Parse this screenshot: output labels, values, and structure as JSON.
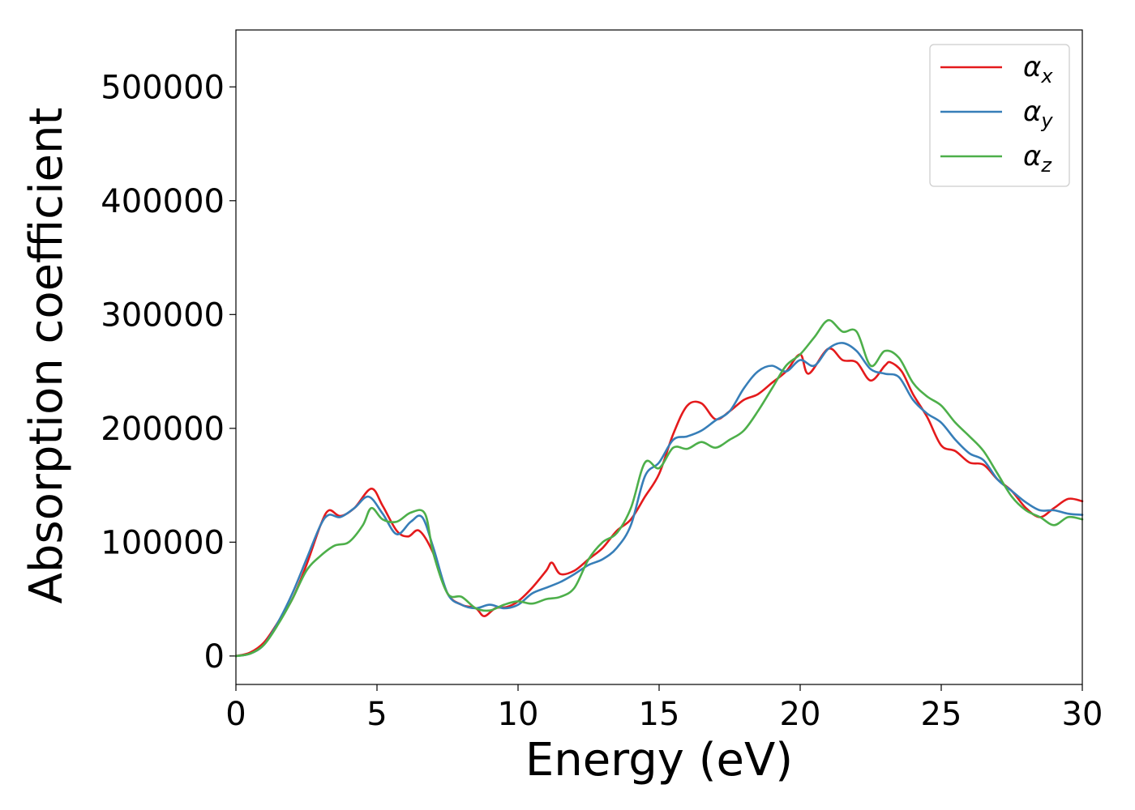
{
  "chart_data": {
    "type": "line",
    "title": "",
    "xlabel": "Energy (eV)",
    "ylabel": "Absorption coefficient",
    "xlim": [
      0,
      30
    ],
    "ylim": [
      -25000,
      550000
    ],
    "xticks": [
      0,
      5,
      10,
      15,
      20,
      25,
      30
    ],
    "xtick_labels": [
      "0",
      "5",
      "10",
      "15",
      "20",
      "25",
      "30"
    ],
    "yticks": [
      0,
      100000,
      200000,
      300000,
      400000,
      500000
    ],
    "ytick_labels": [
      "0",
      "100000",
      "200000",
      "300000",
      "400000",
      "500000"
    ],
    "grid": false,
    "legend_position": "top-right",
    "series": [
      {
        "name": "αx",
        "legend_base": "α",
        "legend_sub": "x",
        "color": "#e41a1c",
        "x": [
          0,
          0.5,
          1,
          1.5,
          2,
          2.5,
          3,
          3.3,
          3.7,
          4.2,
          4.8,
          5.2,
          5.7,
          6.1,
          6.5,
          7,
          7.5,
          8,
          8.5,
          8.8,
          9.2,
          9.6,
          10,
          10.5,
          11,
          11.2,
          11.5,
          12,
          12.5,
          13,
          13.5,
          14,
          14.5,
          15,
          15.5,
          16,
          16.5,
          17,
          17.5,
          18,
          18.5,
          19,
          19.5,
          20,
          20.3,
          21,
          21.5,
          22,
          22.5,
          23,
          23.2,
          23.6,
          24,
          24.5,
          25,
          25.5,
          26,
          26.5,
          27,
          27.5,
          28,
          28.5,
          29,
          29.5,
          30
        ],
        "y": [
          0,
          3000,
          12000,
          30000,
          50000,
          80000,
          115000,
          128000,
          123000,
          130000,
          147000,
          132000,
          110000,
          105000,
          110000,
          90000,
          55000,
          45000,
          42000,
          35000,
          42000,
          43000,
          48000,
          60000,
          75000,
          82000,
          72000,
          75000,
          85000,
          95000,
          110000,
          120000,
          140000,
          160000,
          195000,
          220000,
          222000,
          208000,
          215000,
          225000,
          230000,
          240000,
          250000,
          265000,
          248000,
          270000,
          260000,
          258000,
          242000,
          255000,
          258000,
          250000,
          230000,
          210000,
          185000,
          180000,
          170000,
          168000,
          155000,
          145000,
          130000,
          122000,
          130000,
          138000,
          136000
        ]
      },
      {
        "name": "αy",
        "legend_base": "α",
        "legend_sub": "y",
        "color": "#377eb8",
        "x": [
          0,
          0.5,
          1,
          1.5,
          2,
          2.5,
          3,
          3.3,
          3.7,
          4.2,
          4.7,
          5.2,
          5.7,
          6.2,
          6.6,
          7,
          7.5,
          8,
          8.5,
          9,
          9.5,
          10,
          10.5,
          11,
          11.5,
          12,
          12.5,
          13,
          13.5,
          14,
          14.5,
          15,
          15.5,
          16,
          16.5,
          17,
          17.5,
          18,
          18.5,
          19,
          19.5,
          20,
          20.5,
          21,
          21.5,
          22,
          22.5,
          23,
          23.5,
          24,
          24.5,
          25,
          25.5,
          26,
          26.5,
          27,
          27.5,
          28,
          28.5,
          29,
          29.5,
          30
        ],
        "y": [
          0,
          2000,
          10000,
          30000,
          55000,
          85000,
          115000,
          124000,
          122000,
          130000,
          140000,
          125000,
          107000,
          118000,
          122000,
          95000,
          55000,
          45000,
          42000,
          45000,
          42000,
          45000,
          55000,
          60000,
          65000,
          72000,
          80000,
          85000,
          95000,
          115000,
          158000,
          170000,
          190000,
          193000,
          198000,
          207000,
          215000,
          235000,
          250000,
          255000,
          250000,
          260000,
          255000,
          270000,
          275000,
          268000,
          252000,
          248000,
          245000,
          225000,
          213000,
          205000,
          190000,
          178000,
          172000,
          155000,
          145000,
          135000,
          128000,
          128000,
          125000,
          124000
        ]
      },
      {
        "name": "αz",
        "legend_base": "α",
        "legend_sub": "z",
        "color": "#4daf4a",
        "x": [
          0,
          0.5,
          1,
          1.5,
          2,
          2.5,
          3,
          3.5,
          4,
          4.5,
          4.8,
          5.2,
          5.7,
          6.2,
          6.7,
          7,
          7.5,
          8,
          8.5,
          9,
          9.5,
          10,
          10.5,
          11,
          11.5,
          12,
          12.5,
          13,
          13.5,
          14,
          14.5,
          15,
          15.5,
          16,
          16.5,
          17,
          17.5,
          18,
          18.5,
          19,
          19.5,
          20,
          20.5,
          21,
          21.5,
          22,
          22.5,
          23,
          23.5,
          24,
          24.5,
          25,
          25.5,
          26,
          26.5,
          27,
          27.5,
          28,
          28.5,
          29,
          29.5,
          30
        ],
        "y": [
          0,
          2000,
          10000,
          28000,
          50000,
          75000,
          88000,
          97000,
          100000,
          115000,
          130000,
          120000,
          118000,
          126000,
          125000,
          90000,
          55000,
          52000,
          42000,
          40000,
          45000,
          48000,
          46000,
          50000,
          52000,
          60000,
          85000,
          100000,
          108000,
          130000,
          170000,
          165000,
          183000,
          182000,
          188000,
          183000,
          190000,
          198000,
          215000,
          235000,
          255000,
          265000,
          280000,
          295000,
          285000,
          285000,
          255000,
          268000,
          262000,
          240000,
          228000,
          220000,
          205000,
          193000,
          180000,
          160000,
          140000,
          128000,
          122000,
          115000,
          122000,
          120000
        ]
      }
    ]
  }
}
